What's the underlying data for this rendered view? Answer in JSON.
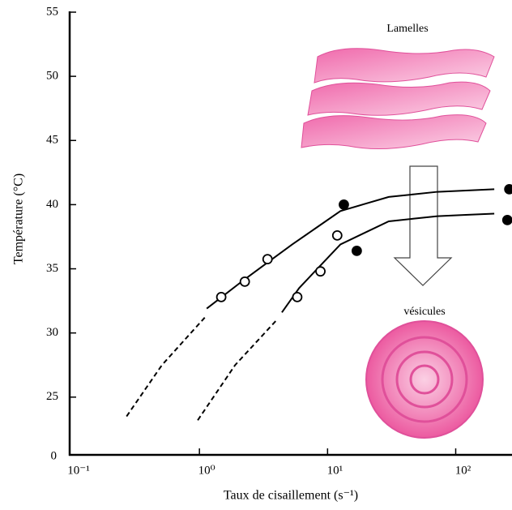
{
  "chart_data": {
    "type": "line",
    "xlabel": "Taux de cisaillement (s⁻¹)",
    "ylabel": "Température (°C)",
    "xscale": "log",
    "xlim": [
      0.1,
      275
    ],
    "ylim": [
      20.5,
      55
    ],
    "xticks": [
      {
        "value": 0.1,
        "label": "10⁻¹"
      },
      {
        "value": 1,
        "label": "10⁰"
      },
      {
        "value": 10,
        "label": "10¹"
      },
      {
        "value": 100,
        "label": "10²"
      }
    ],
    "yticks": [
      25,
      30,
      35,
      40,
      45,
      50,
      55
    ],
    "y_axis_origin_label": "0",
    "annotations": [
      "Lamelles",
      "vésicules"
    ],
    "series": [
      {
        "mode": "line",
        "dash": false,
        "color": "#000000",
        "x": [
          1.14,
          2.2,
          5.3,
          12.6,
          30,
          72,
          200
        ],
        "values": [
          31.9,
          34.1,
          36.9,
          39.5,
          40.6,
          41.0,
          41.2
        ]
      },
      {
        "mode": "line",
        "dash": false,
        "color": "#000000",
        "x": [
          4.4,
          6.0,
          12.6,
          30,
          72,
          200
        ],
        "values": [
          31.6,
          33.5,
          36.9,
          38.7,
          39.1,
          39.3
        ]
      },
      {
        "mode": "line",
        "dash": true,
        "color": "#000000",
        "x": [
          0.27,
          0.51,
          1.1
        ],
        "values": [
          23.5,
          27.5,
          31.2
        ]
      },
      {
        "mode": "line",
        "dash": true,
        "color": "#000000",
        "x": [
          0.97,
          1.9,
          4.0
        ],
        "values": [
          23.2,
          27.5,
          31
        ]
      },
      {
        "mode": "markers",
        "fill": "#ffffff",
        "color": "#000000",
        "x": [
          1.48,
          2.26,
          3.4,
          5.8,
          8.8,
          11.9
        ],
        "values": [
          32.8,
          34.0,
          35.75,
          32.8,
          34.8,
          37.6
        ]
      },
      {
        "mode": "markers",
        "fill": "#000000",
        "color": "#000000",
        "x": [
          13.4,
          16.9,
          262,
          253
        ],
        "values": [
          40.0,
          36.4,
          41.2,
          38.8
        ]
      }
    ]
  }
}
